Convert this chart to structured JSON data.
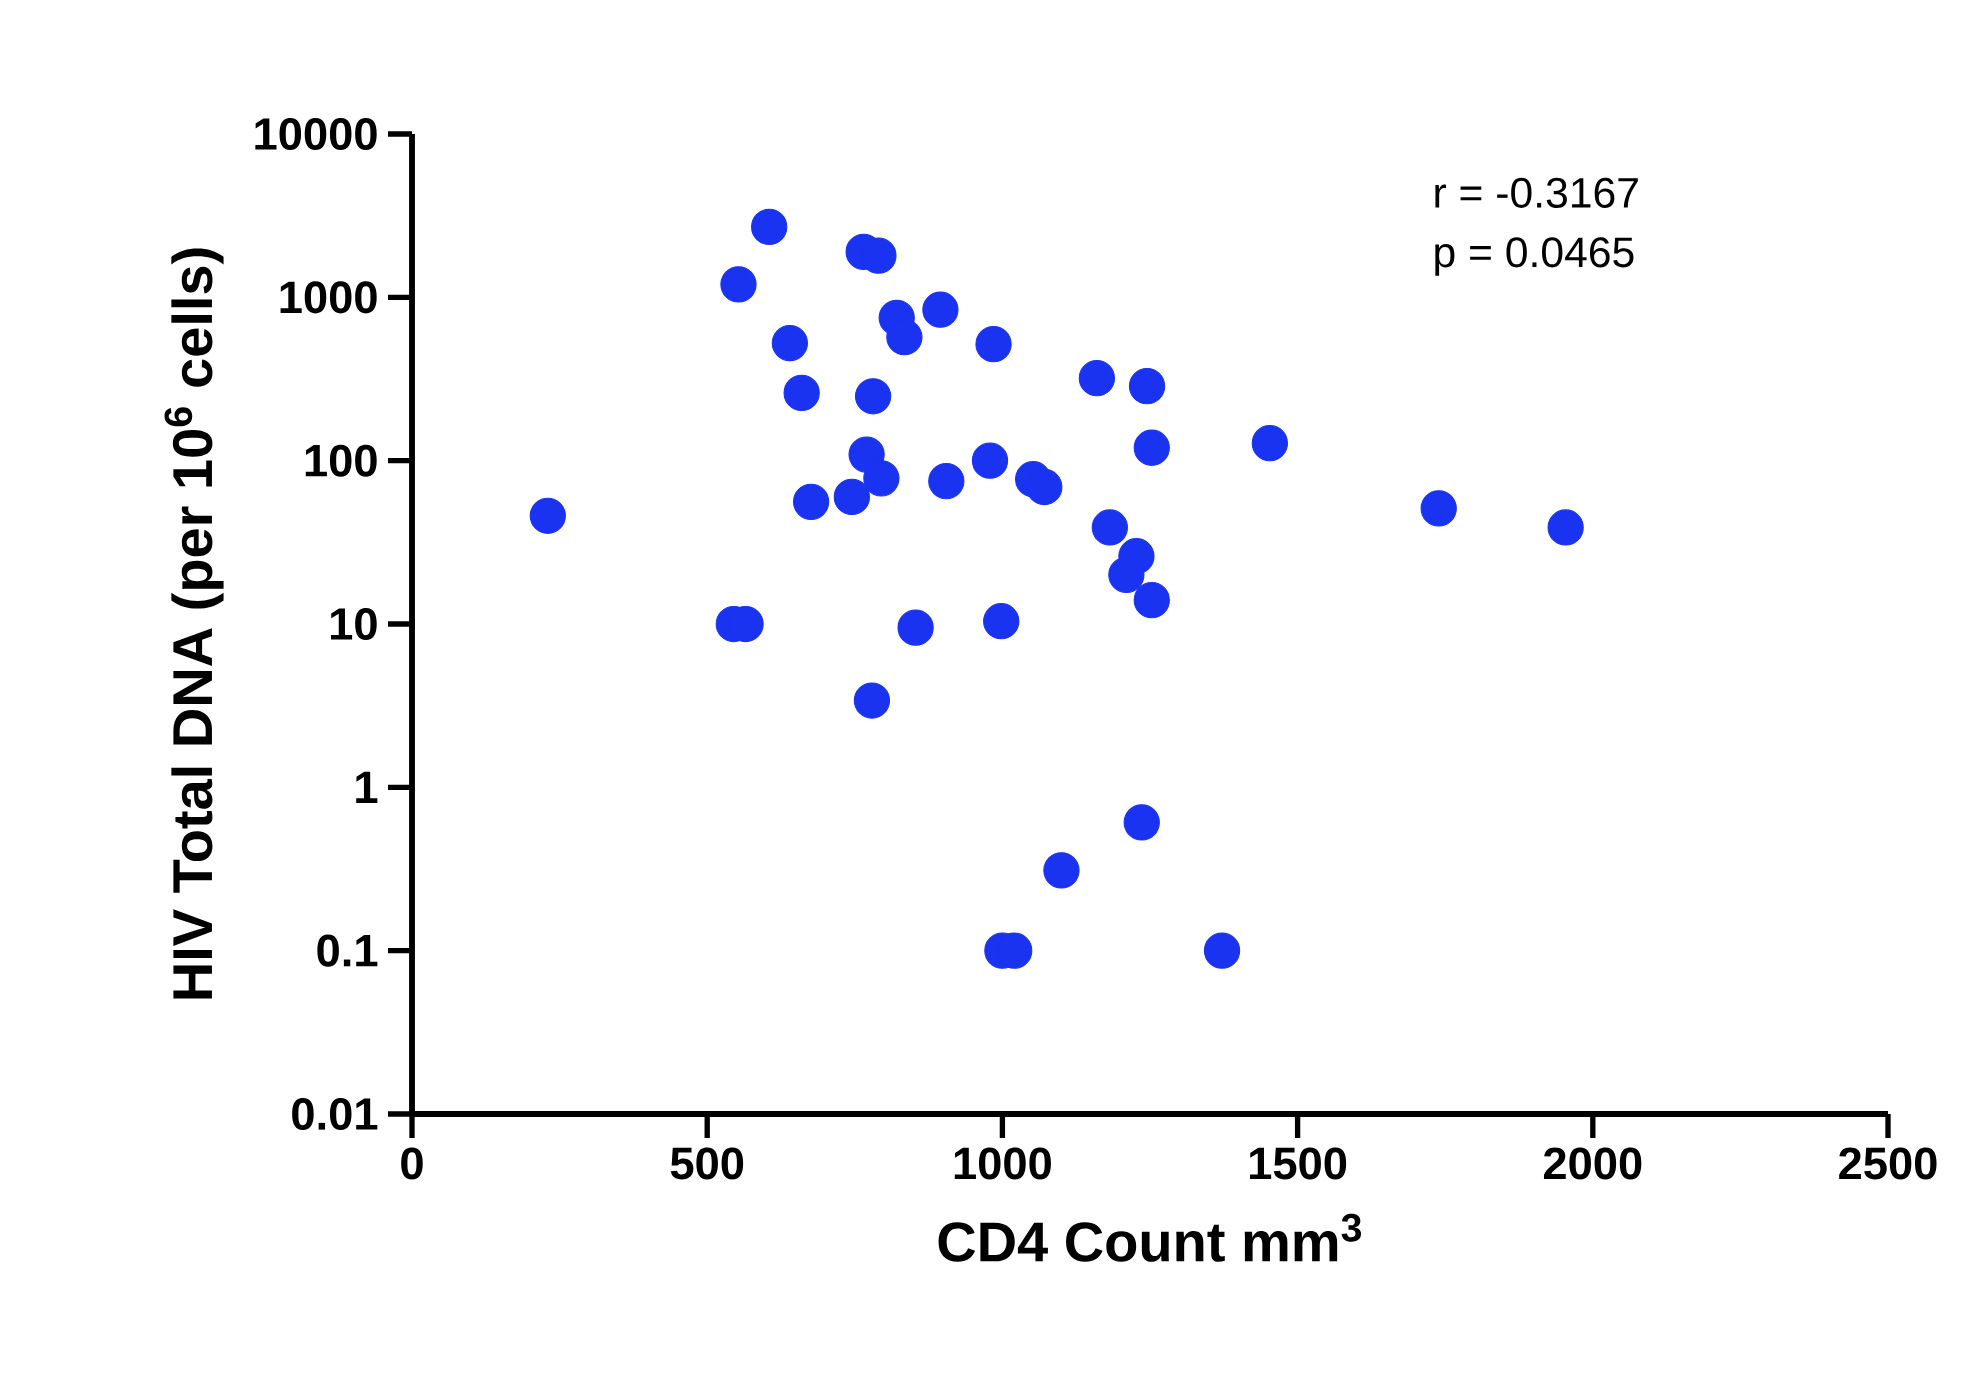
{
  "chart_data": {
    "type": "scatter",
    "xlabel": "CD4 Count mm$^{3}$",
    "ylabel": "HIV Total DNA (per 10$^{6}$ cells)",
    "annotations": [
      "r = -0.3167",
      "p = 0.0465"
    ],
    "log": "y",
    "marker": "circle",
    "xlim": [
      0,
      2500
    ],
    "ylim": [
      0.01,
      10000
    ],
    "xticks": [
      0,
      500,
      1000,
      1500,
      2000,
      2500
    ],
    "yticks": [
      0.01,
      0.1,
      1,
      10,
      100,
      1000,
      10000
    ],
    "series": [
      {
        "color": "#1a33f0",
        "x": [
          230,
          605,
          553,
          765,
          790,
          821,
          834,
          895,
          640,
          985,
          1160,
          1245,
          660,
          781,
          1253,
          1453,
          770,
          795,
          979,
          905,
          1052,
          1071,
          745,
          676,
          1182,
          1227,
          1210,
          1253,
          545,
          565,
          853,
          998,
          1739,
          1954,
          779,
          1236,
          1100,
          1000,
          1020,
          1372
        ],
        "values": [
          46,
          2700,
          1200,
          1900,
          1800,
          750,
          570,
          840,
          525,
          517,
          320,
          286,
          260,
          248,
          120,
          128,
          109,
          78,
          100,
          75,
          77,
          69,
          60,
          56,
          39,
          26,
          20,
          14,
          10,
          10,
          9.5,
          10.4,
          51,
          39,
          3.4,
          0.61,
          0.31,
          0.1,
          0.1,
          0.1
        ]
      }
    ]
  }
}
